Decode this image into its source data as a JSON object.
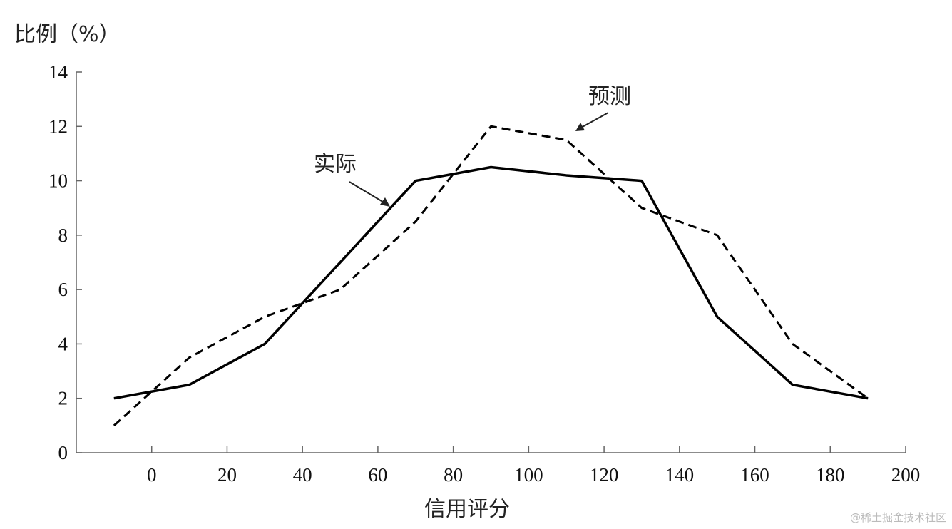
{
  "chart_data": {
    "type": "line",
    "title": "",
    "xlabel": "信用评分",
    "ylabel": "比例（%）",
    "xlim": [
      -20,
      200
    ],
    "ylim": [
      0,
      14
    ],
    "xticks": [
      "0",
      "20",
      "40",
      "60",
      "80",
      "100",
      "120",
      "140",
      "160",
      "180",
      "200"
    ],
    "yticks": [
      "0",
      "2",
      "4",
      "6",
      "8",
      "10",
      "12",
      "14"
    ],
    "grid": false,
    "series": [
      {
        "name": "实际",
        "style": "solid",
        "color": "#000000",
        "x": [
          -10,
          10,
          30,
          70,
          90,
          110,
          130,
          150,
          170,
          190
        ],
        "y": [
          2,
          2.5,
          4,
          10,
          10.5,
          10.2,
          10,
          5,
          2.5,
          2
        ]
      },
      {
        "name": "预测",
        "style": "dashed",
        "color": "#000000",
        "x": [
          -10,
          10,
          30,
          50,
          70,
          90,
          110,
          130,
          150,
          170,
          190
        ],
        "y": [
          1,
          3.5,
          5,
          6,
          8.5,
          12,
          11.5,
          9,
          8,
          4,
          2
        ]
      }
    ],
    "annotations": [
      "实际",
      "预测"
    ]
  },
  "watermark": "@稀土掘金技术社区"
}
